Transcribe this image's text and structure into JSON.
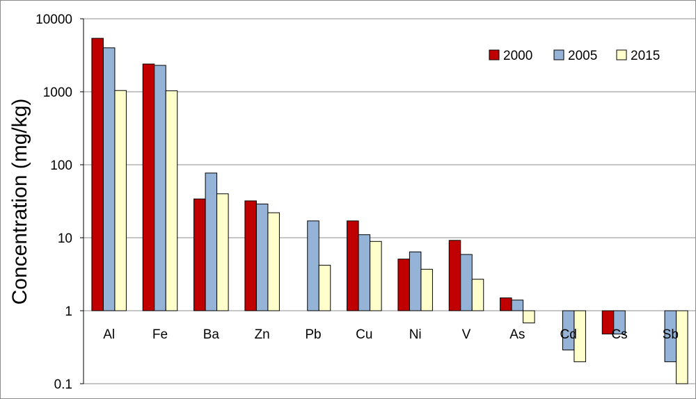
{
  "chart_data": {
    "type": "bar",
    "title": "",
    "xlabel": "",
    "ylabel": "Concentration (mg/kg)",
    "yscale": "log",
    "ylim": [
      0.1,
      10000
    ],
    "baseline": 1,
    "yticks": [
      "0.1",
      "1",
      "10",
      "100",
      "1000",
      "10000"
    ],
    "grid": "horizontal",
    "legend_position": "top-right",
    "categories": [
      "Al",
      "Fe",
      "Ba",
      "Zn",
      "Pb",
      "Cu",
      "Ni",
      "V",
      "As",
      "Cd",
      "Cs",
      "Sb"
    ],
    "series": [
      {
        "name": "2000",
        "color": "#c00000",
        "values": [
          5400,
          2400,
          34,
          32,
          null,
          17,
          5.1,
          9.2,
          1.5,
          null,
          0.48,
          null
        ]
      },
      {
        "name": "2005",
        "color": "#95b3d7",
        "values": [
          4000,
          2300,
          77,
          29,
          17,
          11,
          6.4,
          5.9,
          1.4,
          0.29,
          0.48,
          0.2
        ]
      },
      {
        "name": "2015",
        "color": "#ffffcc",
        "values": [
          1040,
          1030,
          40,
          22,
          4.2,
          8.9,
          3.7,
          2.7,
          0.68,
          0.2,
          null,
          0.1
        ]
      }
    ]
  }
}
